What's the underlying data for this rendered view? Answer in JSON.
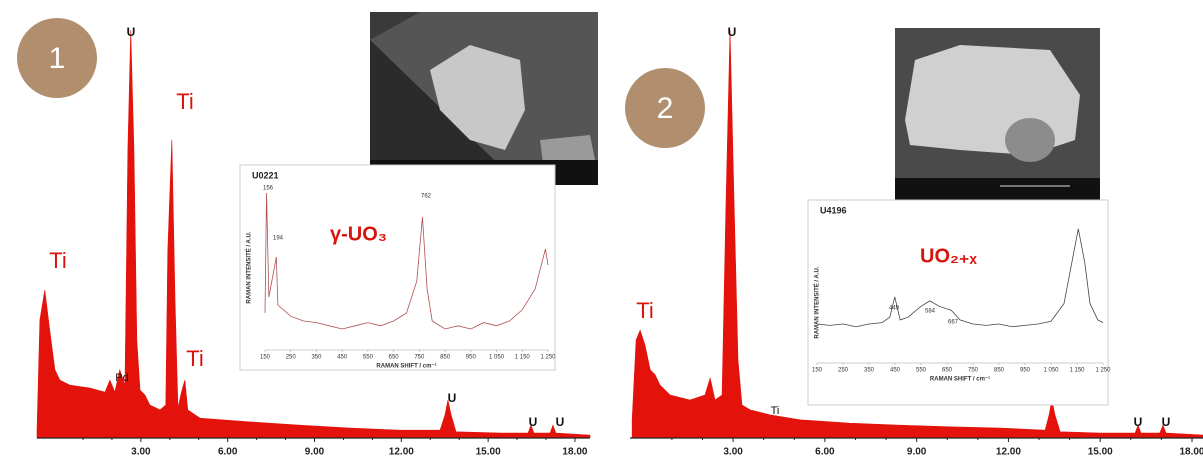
{
  "chart_data": [
    {
      "type": "area",
      "color": "#e3120b",
      "x": [
        -0.59,
        -0.49,
        -0.32,
        -0.15,
        0.03,
        0.2,
        0.55,
        1.24,
        1.76,
        1.93,
        2.1,
        2.27,
        2.45,
        2.55,
        2.65,
        2.76,
        2.86,
        2.97,
        3.14,
        3.31,
        3.66,
        3.86,
        3.93,
        4.07,
        4.18,
        4.28,
        4.42,
        4.52,
        4.62,
        5.04,
        6.77,
        8.5,
        10.22,
        11.95,
        13.34,
        13.51,
        13.61,
        13.72,
        13.89,
        15.41,
        16.38,
        16.48,
        16.58,
        17.14,
        17.24,
        17.34,
        18.52
      ],
      "values": [
        1.9,
        28.6,
        35.8,
        26.1,
        16.5,
        14.0,
        12.8,
        12.1,
        11.1,
        14.0,
        11.1,
        16.5,
        12.8,
        69.7,
        98.8,
        69.7,
        23.7,
        11.6,
        10.4,
        8.0,
        6.8,
        8.0,
        45.5,
        72.2,
        33.4,
        7.3,
        11.6,
        14.0,
        6.8,
        4.8,
        3.9,
        3.1,
        2.4,
        1.9,
        1.9,
        5.6,
        9.2,
        5.6,
        1.5,
        1.2,
        1.2,
        3.1,
        1.2,
        1.2,
        3.1,
        1.2,
        0.7
      ],
      "xlim": [
        -0.59,
        18.52
      ],
      "ylim": [
        0,
        100
      ],
      "xticks": [
        {
          "value": 3,
          "label": "3.00"
        },
        {
          "value": 6,
          "label": "6.00"
        },
        {
          "value": 9,
          "label": "9.00"
        },
        {
          "value": 12,
          "label": "12.00"
        },
        {
          "value": 15,
          "label": "15.00"
        },
        {
          "value": 18,
          "label": "18.00"
        }
      ],
      "panel_label": "1",
      "annotations": [
        "U",
        "Ti",
        "Ti",
        "Ti",
        "Pd",
        "U",
        "U",
        "U"
      ]
    },
    {
      "type": "area",
      "color": "#e3120b",
      "x": [
        -0.3,
        -0.17,
        -0.04,
        0.12,
        0.29,
        0.45,
        0.61,
        0.94,
        1.59,
        2.08,
        2.25,
        2.41,
        2.64,
        2.77,
        2.9,
        3.03,
        3.16,
        3.29,
        3.56,
        4.21,
        5.19,
        6.82,
        8.46,
        10.09,
        11.73,
        13.2,
        13.33,
        13.42,
        13.52,
        13.69,
        14.99,
        16.14,
        16.24,
        16.33,
        16.95,
        17.05,
        17.15,
        18.36
      ],
      "values": [
        4.4,
        23.7,
        26.1,
        22.5,
        16.5,
        15.3,
        12.8,
        10.4,
        9.2,
        10.4,
        14.5,
        9.2,
        10.4,
        57.6,
        98.8,
        57.6,
        18.9,
        8.0,
        6.8,
        5.6,
        4.4,
        3.6,
        3.1,
        2.7,
        2.4,
        1.9,
        5.6,
        9.2,
        5.6,
        1.5,
        1.2,
        1.2,
        3.1,
        1.2,
        1.2,
        3.1,
        1.2,
        0.7
      ],
      "xlim": [
        -0.37,
        18.36
      ],
      "ylim": [
        0,
        100
      ],
      "xticks": [
        {
          "value": 3,
          "label": "3.00"
        },
        {
          "value": 6,
          "label": "6.00"
        },
        {
          "value": 9,
          "label": "9.00"
        },
        {
          "value": 12,
          "label": "12.00"
        },
        {
          "value": 15,
          "label": "15.00"
        },
        {
          "value": 18,
          "label": "18.00"
        }
      ],
      "panel_label": "2",
      "annotations": [
        "U",
        "Ti",
        "Ti",
        "U",
        "U"
      ]
    },
    {
      "type": "line",
      "color": "#b05050",
      "title": "U0221",
      "label": "γ-UO₃",
      "xlabel": "RAMAN SHIFT / cm⁻¹",
      "ylabel": "RAMAN INTENSITÉ / A.U.",
      "x": [
        150,
        156,
        165,
        194,
        200,
        250,
        300,
        350,
        400,
        450,
        500,
        550,
        600,
        650,
        700,
        740,
        762,
        780,
        800,
        850,
        900,
        950,
        1000,
        1050,
        1100,
        1150,
        1200,
        1240,
        1250
      ],
      "values": [
        20,
        95,
        30,
        55,
        25,
        18,
        15,
        14,
        12,
        10,
        12,
        14,
        12,
        15,
        20,
        40,
        80,
        35,
        15,
        10,
        12,
        10,
        14,
        12,
        15,
        22,
        35,
        60,
        50
      ],
      "xlim": [
        150,
        1250
      ],
      "ylim": [
        0,
        100
      ],
      "xticks": [
        150,
        250,
        350,
        450,
        550,
        650,
        750,
        850,
        950,
        {
          "value": 1050,
          "label": "1 050"
        },
        {
          "value": 1150,
          "label": "1 150"
        },
        {
          "value": 1250,
          "label": "1 250"
        }
      ],
      "annotations": [
        "156",
        "194",
        "762"
      ]
    },
    {
      "type": "line",
      "color": "#444444",
      "title": "U4196",
      "label": "UO₂₊ₓ",
      "xlabel": "RAMAN SHIFT / cm⁻¹",
      "ylabel": "RAMAN INTENSITÉ / A.U.",
      "x": [
        150,
        200,
        250,
        300,
        350,
        400,
        430,
        449,
        470,
        500,
        550,
        584,
        620,
        667,
        700,
        750,
        800,
        850,
        900,
        950,
        1000,
        1050,
        1100,
        1130,
        1155,
        1180,
        1200,
        1230,
        1250
      ],
      "values": [
        25,
        24,
        25,
        23,
        25,
        26,
        30,
        45,
        28,
        30,
        38,
        42,
        38,
        35,
        28,
        25,
        24,
        25,
        23,
        24,
        25,
        27,
        40,
        70,
        95,
        70,
        40,
        28,
        26
      ],
      "xlim": [
        150,
        1250
      ],
      "ylim": [
        0,
        100
      ],
      "xticks": [
        150,
        250,
        350,
        450,
        550,
        650,
        750,
        850,
        950,
        {
          "value": 1050,
          "label": "1 050"
        },
        {
          "value": 1150,
          "label": "1 150"
        },
        {
          "value": 1250,
          "label": "1 250"
        }
      ],
      "annotations": [
        "449",
        "584",
        "667"
      ]
    }
  ]
}
